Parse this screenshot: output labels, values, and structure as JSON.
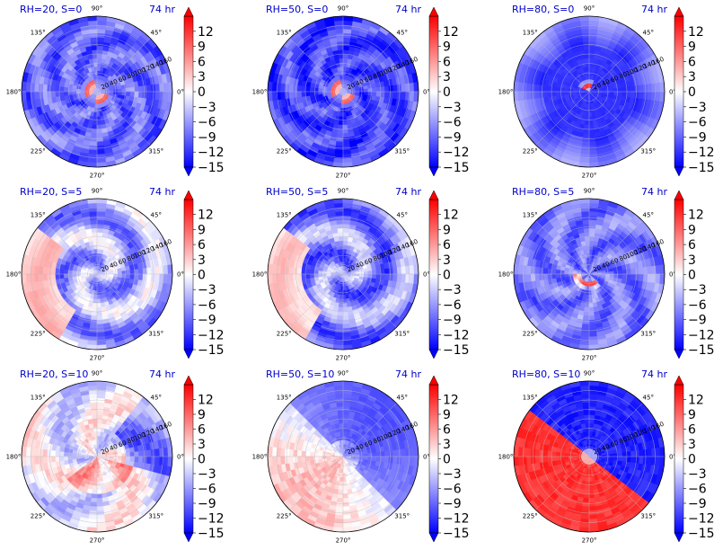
{
  "colors": {
    "positive": "#ff0000",
    "neutral": "#ffffff",
    "negative": "#0000ff",
    "title": "#0000cc"
  },
  "chart_data": {
    "type": "heatmap",
    "projection": "polar",
    "grid": true,
    "angular_ticks": [
      "0°",
      "45°",
      "90°",
      "135°",
      "180°",
      "225°",
      "270°",
      "315°"
    ],
    "radial_ticks": [
      "20",
      "40",
      "60",
      "80",
      "100",
      "120",
      "140",
      "160"
    ],
    "radial_range": [
      0,
      160
    ],
    "colorbar": {
      "ticks": [
        "12",
        "9",
        "6",
        "3",
        "0",
        "−3",
        "−6",
        "−9",
        "−12",
        "−15"
      ],
      "values": [
        12,
        9,
        6,
        3,
        0,
        -3,
        -6,
        -9,
        -12,
        -15
      ],
      "range": [
        -15,
        15
      ],
      "colormap": "bwr",
      "extend": "both"
    },
    "panels": [
      {
        "title": "RH=20, S=0",
        "time": "74 hr",
        "RH": 20,
        "S": 0,
        "pattern": "eyewall_ring",
        "mean": -9
      },
      {
        "title": "RH=50, S=0",
        "time": "74 hr",
        "RH": 50,
        "S": 0,
        "pattern": "eyewall_ring",
        "mean": -11
      },
      {
        "title": "RH=80, S=0",
        "time": "74 hr",
        "RH": 80,
        "S": 0,
        "pattern": "compact_core",
        "mean": -12
      },
      {
        "title": "RH=20, S=5",
        "time": "74 hr",
        "RH": 20,
        "S": 5,
        "pattern": "asymmetric_spiral",
        "mean": -5
      },
      {
        "title": "RH=50, S=5",
        "time": "74 hr",
        "RH": 50,
        "S": 5,
        "pattern": "asymmetric_spiral",
        "mean": -7
      },
      {
        "title": "RH=80, S=5",
        "time": "74 hr",
        "RH": 80,
        "S": 5,
        "pattern": "spiral_band",
        "mean": -8
      },
      {
        "title": "RH=20, S=10",
        "time": "74 hr",
        "RH": 20,
        "S": 10,
        "pattern": "weak_mixed",
        "mean": -1
      },
      {
        "title": "RH=50, S=10",
        "time": "74 hr",
        "RH": 50,
        "S": 10,
        "pattern": "split_mixed",
        "mean": -2
      },
      {
        "title": "RH=80, S=10",
        "time": "74 hr",
        "RH": 80,
        "S": 10,
        "pattern": "half_split",
        "mean": 0
      }
    ]
  }
}
